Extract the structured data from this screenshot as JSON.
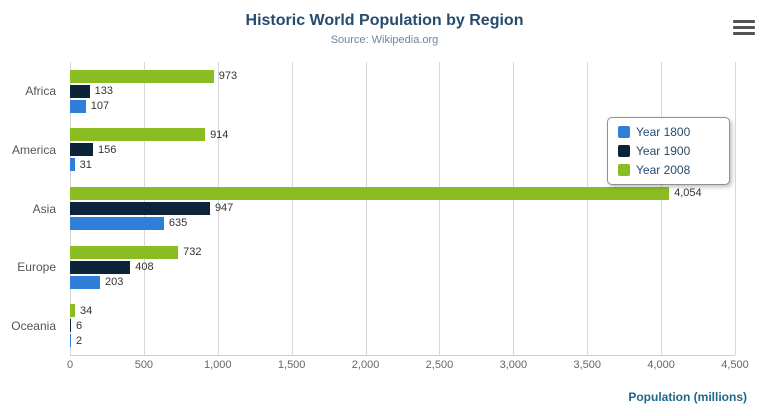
{
  "header": {
    "title": "Historic World Population by Region",
    "subtitle": "Source: Wikipedia.org"
  },
  "menu": {
    "icon": "hamburger-menu-icon"
  },
  "xaxis": {
    "title": "Population (millions)"
  },
  "chart_data": {
    "type": "bar",
    "orientation": "horizontal",
    "categories": [
      "Africa",
      "America",
      "Asia",
      "Europe",
      "Oceania"
    ],
    "series": [
      {
        "name": "Year 1800",
        "color": "#2f7ed8",
        "values": [
          107,
          31,
          635,
          203,
          2
        ]
      },
      {
        "name": "Year 1900",
        "color": "#0d233a",
        "values": [
          133,
          156,
          947,
          408,
          6
        ]
      },
      {
        "name": "Year 2008",
        "color": "#8bbc21",
        "values": [
          973,
          914,
          4054,
          732,
          34
        ]
      }
    ],
    "display_series_order_top_to_bottom": [
      2,
      1,
      0
    ],
    "xlim": [
      0,
      4500
    ],
    "tick_interval": 500,
    "tick_labels": [
      "0",
      "500",
      "1,000",
      "1,500",
      "2,000",
      "2,500",
      "3,000",
      "3,500",
      "4,000",
      "4,500"
    ],
    "grid": true,
    "legend_position": "right",
    "data_labels": true
  }
}
